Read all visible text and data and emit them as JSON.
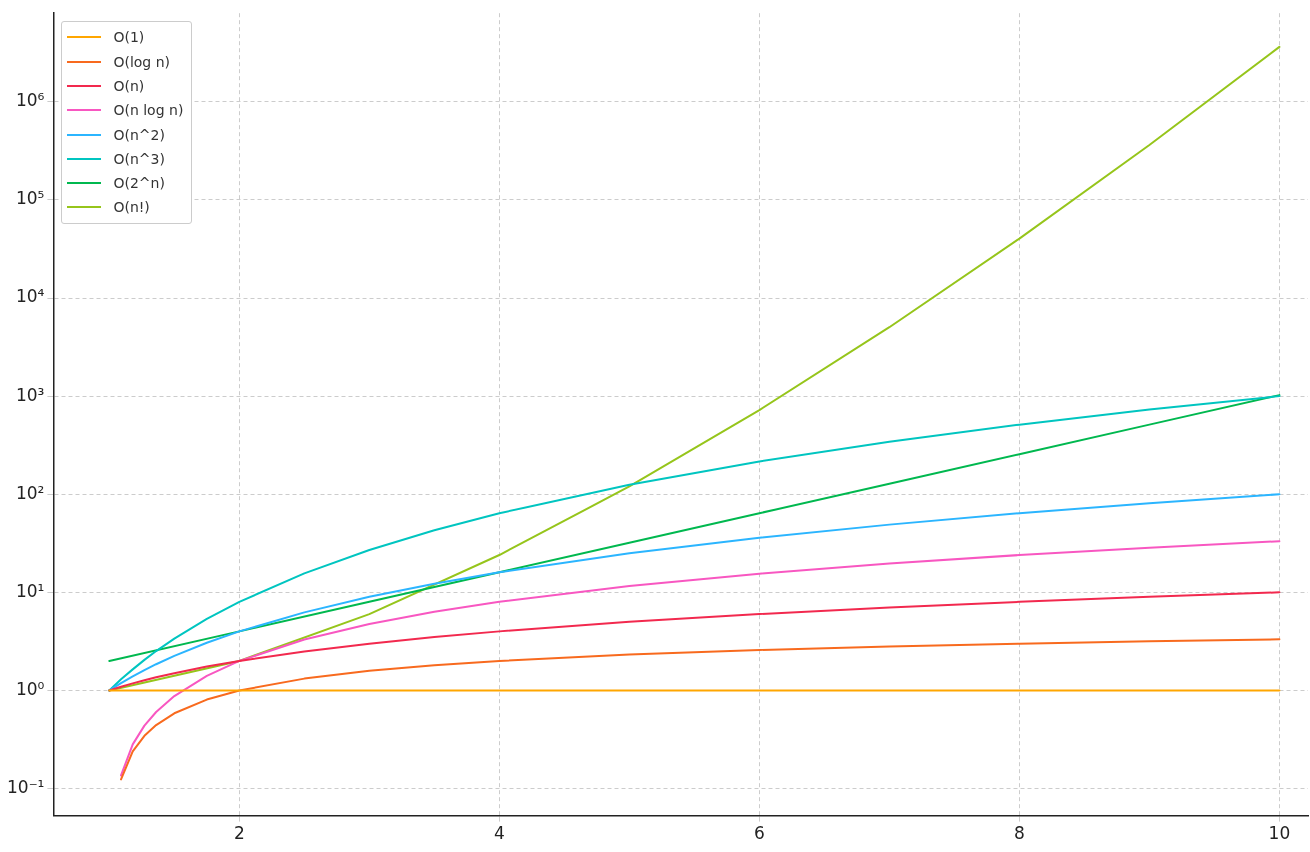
{
  "chart_data": {
    "type": "line",
    "x": [
      1,
      1.09,
      1.18,
      1.27,
      1.36,
      1.5,
      1.75,
      2,
      2.5,
      3,
      3.5,
      4,
      5,
      6,
      7,
      8,
      9,
      10
    ],
    "series": [
      {
        "name": "O(1)",
        "color": "#ffa600",
        "values": [
          1,
          1,
          1,
          1,
          1,
          1,
          1,
          1,
          1,
          1,
          1,
          1,
          1,
          1,
          1,
          1,
          1,
          1
        ]
      },
      {
        "name": "O(log n)",
        "color": "#f86a1e",
        "values": [
          null,
          0.124,
          0.239,
          0.345,
          0.444,
          0.585,
          0.807,
          1,
          1.32,
          1.585,
          1.81,
          2,
          2.32,
          2.585,
          2.81,
          3,
          3.17,
          3.32
        ]
      },
      {
        "name": "O(n)",
        "color": "#f2294e",
        "values": [
          1,
          1.09,
          1.18,
          1.27,
          1.36,
          1.5,
          1.75,
          2,
          2.5,
          3,
          3.5,
          4,
          5,
          6,
          7,
          8,
          9,
          10
        ]
      },
      {
        "name": "O(n log n)",
        "color": "#f857c1",
        "values": [
          null,
          0.136,
          0.282,
          0.438,
          0.603,
          0.877,
          1.41,
          2,
          3.3,
          4.75,
          6.33,
          8,
          11.6,
          15.5,
          19.7,
          24,
          28.5,
          33.2
        ]
      },
      {
        "name": "O(n^2)",
        "color": "#2bb5ff",
        "values": [
          1,
          1.19,
          1.39,
          1.61,
          1.85,
          2.25,
          3.06,
          4,
          6.25,
          9,
          12.25,
          16,
          25,
          36,
          49,
          64,
          81,
          100
        ]
      },
      {
        "name": "O(n^3)",
        "color": "#00c5c0",
        "values": [
          1,
          1.3,
          1.64,
          2.05,
          2.52,
          3.38,
          5.36,
          8,
          15.6,
          27,
          42.9,
          64,
          125,
          216,
          343,
          512,
          729,
          1000
        ]
      },
      {
        "name": "O(2^n)",
        "color": "#00b84f",
        "x": [
          1,
          2,
          3,
          4,
          5,
          6,
          7,
          8,
          9,
          10
        ],
        "values": [
          2,
          4,
          8,
          16,
          32,
          64,
          128,
          256,
          512,
          1024
        ]
      },
      {
        "name": "O(n!)",
        "color": "#96c51b",
        "x": [
          1,
          2,
          3,
          4,
          5,
          6,
          7,
          8,
          9,
          10
        ],
        "values": [
          1,
          2,
          6,
          24,
          120,
          720,
          5040,
          40320,
          362880,
          3628800
        ]
      }
    ],
    "xlim": [
      0.57,
      10.22
    ],
    "xticks": [
      2,
      4,
      6,
      8,
      10
    ],
    "ylim": [
      0.053,
      8000000
    ],
    "log": "y",
    "yticks": [
      {
        "value": 0.1,
        "label": "10⁻¹"
      },
      {
        "value": 1,
        "label": "10⁰"
      },
      {
        "value": 10,
        "label": "10¹"
      },
      {
        "value": 100,
        "label": "10²"
      },
      {
        "value": 1000,
        "label": "10³"
      },
      {
        "value": 10000,
        "label": "10⁴"
      },
      {
        "value": 100000,
        "label": "10⁵"
      },
      {
        "value": 1000000,
        "label": "10⁶"
      }
    ],
    "grid": true,
    "legend": "top left",
    "marker": "none",
    "line_style": "solid"
  }
}
